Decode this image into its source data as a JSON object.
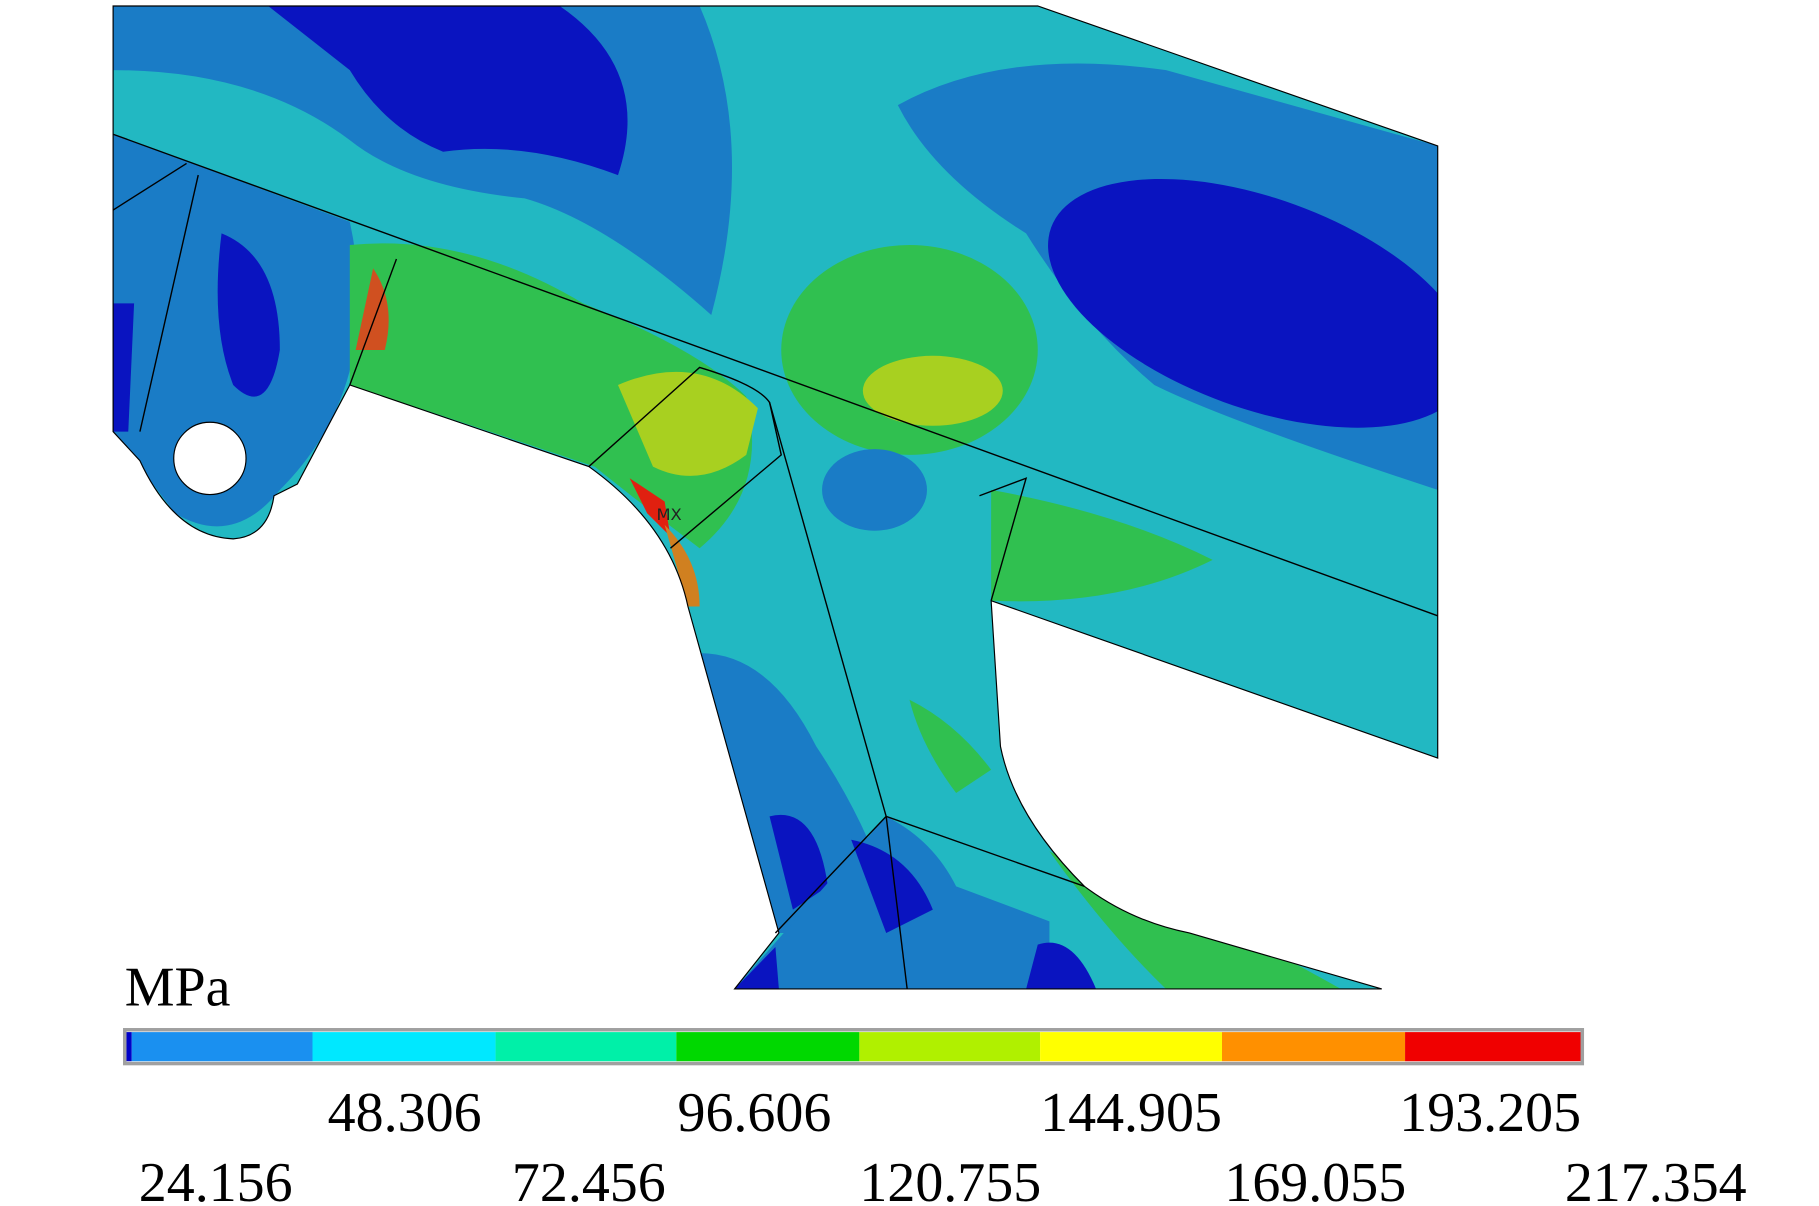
{
  "plot": {
    "marker": "MX"
  },
  "legend": {
    "unit": "MPa",
    "colors": [
      "#0000c8",
      "#1a90f0",
      "#00e8ff",
      "#00f0a8",
      "#00d800",
      "#b0f000",
      "#ffff00",
      "#ff9000",
      "#f00000"
    ],
    "labels": [
      "24.156",
      "48.306",
      "72.456",
      "96.606",
      "120.755",
      "144.905",
      "169.055",
      "193.205",
      "217.354"
    ]
  }
}
